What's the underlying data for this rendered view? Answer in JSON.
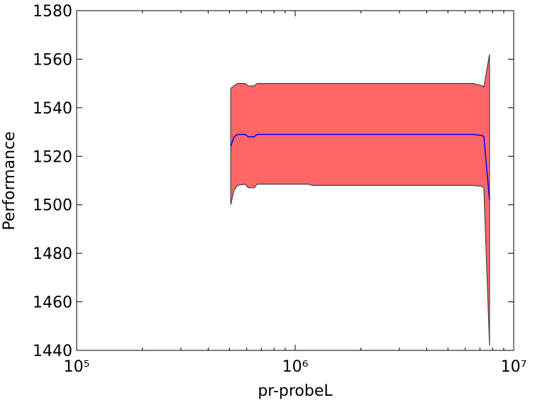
{
  "chart_data": {
    "type": "band-line",
    "xlabel": "pr-probeL",
    "ylabel": "Performance",
    "x": [
      507000,
      525000,
      545000,
      590000,
      610000,
      650000,
      670000,
      1150000,
      1200000,
      6500000,
      7200000,
      7300000,
      7750000
    ],
    "values": [
      1524,
      1528,
      1529,
      1529,
      1528,
      1528,
      1529,
      1529,
      1529,
      1529,
      1528.5,
      1528,
      1502
    ],
    "upper": [
      1548,
      1549,
      1550,
      1550,
      1549,
      1549,
      1550,
      1550,
      1550,
      1550,
      1549,
      1548.5,
      1562
    ],
    "lower": [
      1500,
      1506,
      1508,
      1508.5,
      1507,
      1507,
      1508.5,
      1508.5,
      1508,
      1508,
      1507.5,
      1507,
      1442
    ],
    "line_color": "#0000ff",
    "band_color": "#ff6666",
    "band_edge_color": "#444444",
    "xscale": "log",
    "xlim": [
      100000,
      10000000
    ],
    "xticks": [
      {
        "value": 100000,
        "label": "10⁵"
      },
      {
        "value": 1000000,
        "label": "10⁶"
      },
      {
        "value": 10000000,
        "label": "10⁷"
      }
    ],
    "ylim": [
      1440,
      1580
    ],
    "yticks": [
      1440,
      1460,
      1480,
      1500,
      1520,
      1540,
      1560,
      1580
    ]
  }
}
